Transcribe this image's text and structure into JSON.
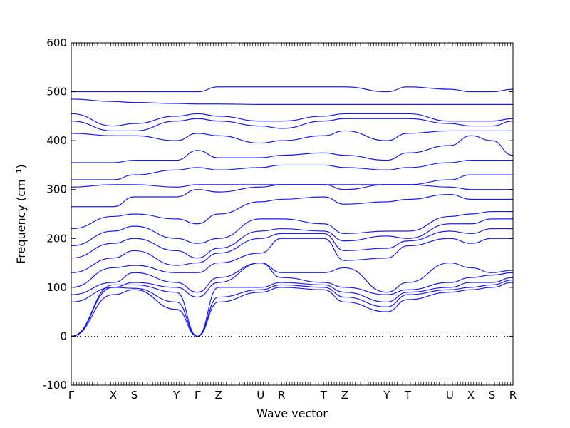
{
  "chart_data": {
    "type": "line",
    "xlabel": "Wave vector",
    "ylabel": "Frequency (cm⁻¹)",
    "ylim": [
      -100,
      600
    ],
    "yticks": [
      -100,
      0,
      100,
      200,
      300,
      400,
      500,
      600
    ],
    "grid": false,
    "kpoints": [
      {
        "label": "Γ",
        "x": 0
      },
      {
        "label": "X",
        "x": 2
      },
      {
        "label": "S",
        "x": 3
      },
      {
        "label": "Y",
        "x": 5
      },
      {
        "label": "Γ",
        "x": 6
      },
      {
        "label": "Z",
        "x": 7
      },
      {
        "label": "U",
        "x": 9
      },
      {
        "label": "R",
        "x": 10
      },
      {
        "label": "T",
        "x": 12
      },
      {
        "label": "Z",
        "x": 13
      },
      {
        "label": "Y",
        "x": 15
      },
      {
        "label": "T",
        "x": 16
      },
      {
        "label": "U",
        "x": 18
      },
      {
        "label": "X",
        "x": 19
      },
      {
        "label": "S",
        "x": 20
      },
      {
        "label": "R",
        "x": 21
      }
    ],
    "series": [
      {
        "x": [
          0,
          2,
          3,
          5,
          6,
          7,
          9,
          10,
          12,
          13,
          15,
          16,
          18,
          19,
          20,
          21
        ],
        "values": [
          0,
          85,
          95,
          55,
          0,
          70,
          90,
          100,
          95,
          70,
          50,
          75,
          90,
          95,
          100,
          110
        ]
      },
      {
        "x": [
          0,
          2,
          3,
          5,
          6,
          7,
          9,
          10,
          12,
          13,
          15,
          16,
          18,
          19,
          20,
          21
        ],
        "values": [
          0,
          100,
          98,
          70,
          0,
          80,
          95,
          105,
          100,
          80,
          60,
          85,
          95,
          100,
          105,
          115
        ]
      },
      {
        "x": [
          0,
          2,
          3,
          5,
          6,
          7,
          9,
          10,
          12,
          13,
          15,
          16,
          18,
          19,
          20,
          21
        ],
        "values": [
          0,
          105,
          105,
          90,
          0,
          100,
          100,
          110,
          105,
          90,
          70,
          90,
          100,
          110,
          110,
          120
        ]
      },
      {
        "x": [
          0,
          2,
          3,
          5,
          6,
          7,
          9,
          10,
          12,
          13,
          15,
          16,
          18,
          19,
          20,
          21
        ],
        "values": [
          70,
          100,
          110,
          100,
          80,
          110,
          150,
          120,
          110,
          100,
          85,
          95,
          110,
          120,
          125,
          130
        ]
      },
      {
        "x": [
          0,
          2,
          3,
          5,
          6,
          7,
          9,
          10,
          12,
          13,
          15,
          16,
          18,
          19,
          20,
          21
        ],
        "values": [
          85,
          110,
          130,
          110,
          90,
          120,
          150,
          130,
          130,
          140,
          90,
          110,
          150,
          140,
          130,
          135
        ]
      },
      {
        "x": [
          0,
          2,
          3,
          5,
          6,
          7,
          9,
          10,
          12,
          13,
          15,
          16,
          18,
          19,
          20,
          21
        ],
        "values": [
          100,
          140,
          145,
          130,
          130,
          150,
          170,
          200,
          200,
          155,
          160,
          185,
          200,
          190,
          200,
          200
        ]
      },
      {
        "x": [
          0,
          2,
          3,
          5,
          6,
          7,
          9,
          10,
          12,
          13,
          15,
          16,
          18,
          19,
          20,
          21
        ],
        "values": [
          130,
          160,
          175,
          145,
          150,
          170,
          200,
          210,
          210,
          175,
          180,
          195,
          215,
          210,
          220,
          220
        ]
      },
      {
        "x": [
          0,
          2,
          3,
          5,
          6,
          7,
          9,
          10,
          12,
          13,
          15,
          16,
          18,
          19,
          20,
          21
        ],
        "values": [
          160,
          190,
          200,
          175,
          160,
          180,
          215,
          220,
          215,
          195,
          205,
          200,
          230,
          230,
          240,
          240
        ]
      },
      {
        "x": [
          0,
          2,
          3,
          5,
          6,
          7,
          9,
          10,
          12,
          13,
          15,
          16,
          18,
          19,
          20,
          21
        ],
        "values": [
          185,
          215,
          225,
          200,
          190,
          200,
          240,
          240,
          230,
          210,
          215,
          215,
          245,
          250,
          255,
          255
        ]
      },
      {
        "x": [
          0,
          2,
          3,
          5,
          6,
          7,
          9,
          10,
          12,
          13,
          15,
          16,
          18,
          19,
          20,
          21
        ],
        "values": [
          220,
          245,
          250,
          240,
          230,
          250,
          275,
          280,
          285,
          270,
          275,
          280,
          290,
          280,
          280,
          280
        ]
      },
      {
        "x": [
          0,
          2,
          3,
          5,
          6,
          7,
          9,
          10,
          12,
          13,
          15,
          16,
          18,
          19,
          20,
          21
        ],
        "values": [
          265,
          265,
          285,
          285,
          300,
          295,
          305,
          310,
          310,
          300,
          310,
          310,
          305,
          300,
          300,
          300
        ]
      },
      {
        "x": [
          0,
          2,
          3,
          5,
          6,
          7,
          9,
          10,
          12,
          13,
          15,
          16,
          18,
          19,
          20,
          21
        ],
        "values": [
          305,
          310,
          310,
          305,
          310,
          310,
          310,
          310,
          310,
          310,
          310,
          310,
          320,
          330,
          330,
          330
        ]
      },
      {
        "x": [
          0,
          2,
          3,
          5,
          6,
          7,
          9,
          10,
          12,
          13,
          15,
          16,
          18,
          19,
          20,
          21
        ],
        "values": [
          320,
          320,
          330,
          340,
          345,
          340,
          345,
          350,
          350,
          345,
          340,
          345,
          355,
          360,
          360,
          360
        ]
      },
      {
        "x": [
          0,
          2,
          3,
          5,
          6,
          7,
          9,
          10,
          12,
          13,
          15,
          16,
          18,
          19,
          20,
          21
        ],
        "values": [
          355,
          355,
          360,
          360,
          380,
          365,
          365,
          370,
          375,
          370,
          360,
          375,
          390,
          410,
          400,
          370
        ]
      },
      {
        "x": [
          0,
          2,
          3,
          5,
          6,
          7,
          9,
          10,
          12,
          13,
          15,
          16,
          18,
          19,
          20,
          21
        ],
        "values": [
          415,
          410,
          410,
          400,
          415,
          410,
          395,
          400,
          410,
          420,
          400,
          415,
          420,
          420,
          420,
          420
        ]
      },
      {
        "x": [
          0,
          2,
          3,
          5,
          6,
          7,
          9,
          10,
          12,
          13,
          15,
          16,
          18,
          19,
          20,
          21
        ],
        "values": [
          440,
          420,
          420,
          440,
          445,
          440,
          430,
          425,
          440,
          445,
          445,
          445,
          435,
          430,
          430,
          440
        ]
      },
      {
        "x": [
          0,
          2,
          3,
          5,
          6,
          7,
          9,
          10,
          12,
          13,
          15,
          16,
          18,
          19,
          20,
          21
        ],
        "values": [
          455,
          430,
          435,
          450,
          455,
          450,
          440,
          440,
          450,
          455,
          455,
          455,
          440,
          440,
          440,
          445
        ]
      },
      {
        "x": [
          0,
          2,
          3,
          5,
          6,
          7,
          9,
          10,
          12,
          13,
          15,
          16,
          18,
          19,
          20,
          21
        ],
        "values": [
          485,
          480,
          478,
          476,
          475,
          475,
          474,
          474,
          474,
          474,
          474,
          474,
          474,
          474,
          474,
          474
        ]
      },
      {
        "x": [
          0,
          2,
          3,
          5,
          6,
          7,
          9,
          10,
          12,
          13,
          15,
          16,
          18,
          19,
          20,
          21
        ],
        "values": [
          500,
          500,
          500,
          500,
          500,
          510,
          510,
          510,
          510,
          510,
          500,
          510,
          505,
          500,
          500,
          505
        ]
      }
    ]
  }
}
